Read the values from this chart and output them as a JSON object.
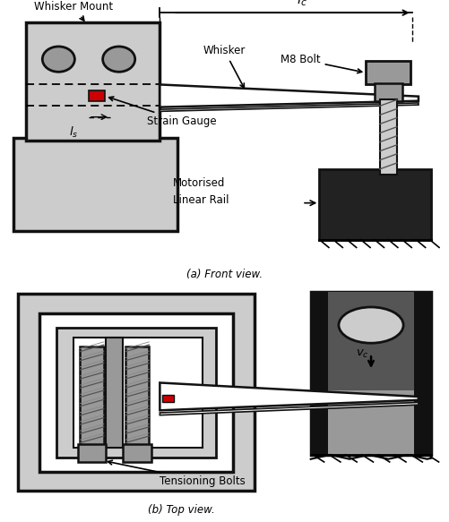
{
  "fig_width": 5.01,
  "fig_height": 5.83,
  "dpi": 100,
  "bg_color": "#ffffff",
  "light_gray": "#cccccc",
  "mid_gray": "#999999",
  "dark_gray": "#555555",
  "very_dark": "#222222",
  "black": "#111111",
  "red": "#cc0000",
  "caption_a": "(a) Front view.",
  "caption_b": "(b) Top view.",
  "label_whisker_mount": "Whisker Mount",
  "label_whisker": "Whisker",
  "label_m8bolt": "M8 Bolt",
  "label_lc": "$l_c$",
  "label_ls": "$l_s$",
  "label_strain_gauge": "Strain Gauge",
  "label_motorised": "Motorised",
  "label_linear_rail": "Linear Rail",
  "label_tensioning": "Tensioning Bolts",
  "label_vc": "$v_c$"
}
